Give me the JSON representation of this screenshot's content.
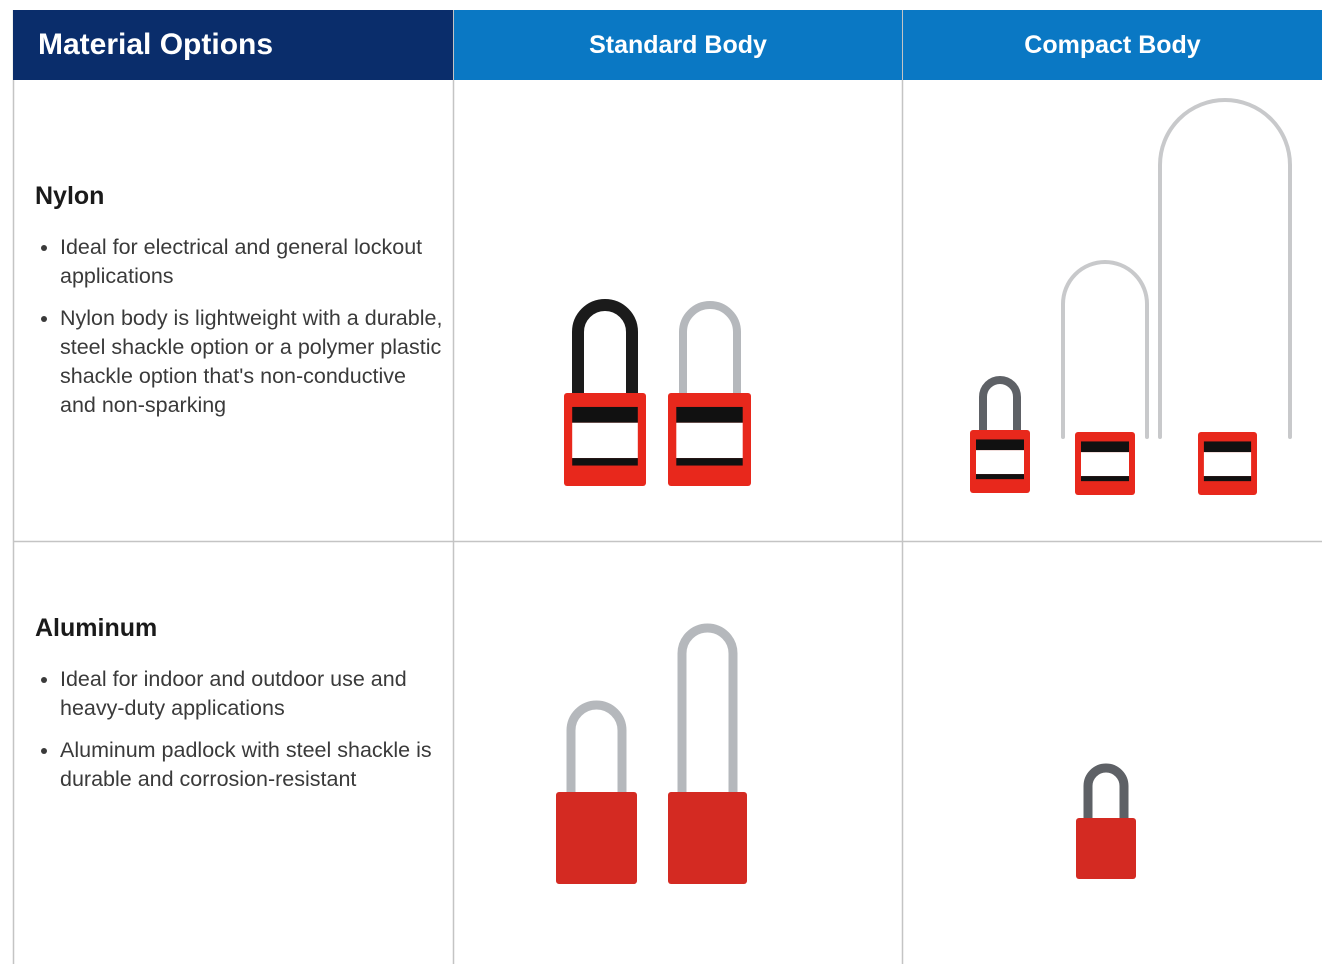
{
  "header": {
    "columns": [
      "Material Options",
      "Standard Body",
      "Compact Body"
    ]
  },
  "rows": [
    {
      "title": "Nylon",
      "bullets": [
        "Ideal for electrical and general lockout applications",
        "Nylon body is lightweight with a durable, steel shackle option or a polymer plastic shackle option that's non-conductive and non-sparking"
      ]
    },
    {
      "title": "Aluminum",
      "bullets": [
        "Ideal for indoor and outdoor use and heavy-duty applications",
        "Aluminum padlock with steel shackle is durable and corrosion-resistant"
      ]
    }
  ]
}
